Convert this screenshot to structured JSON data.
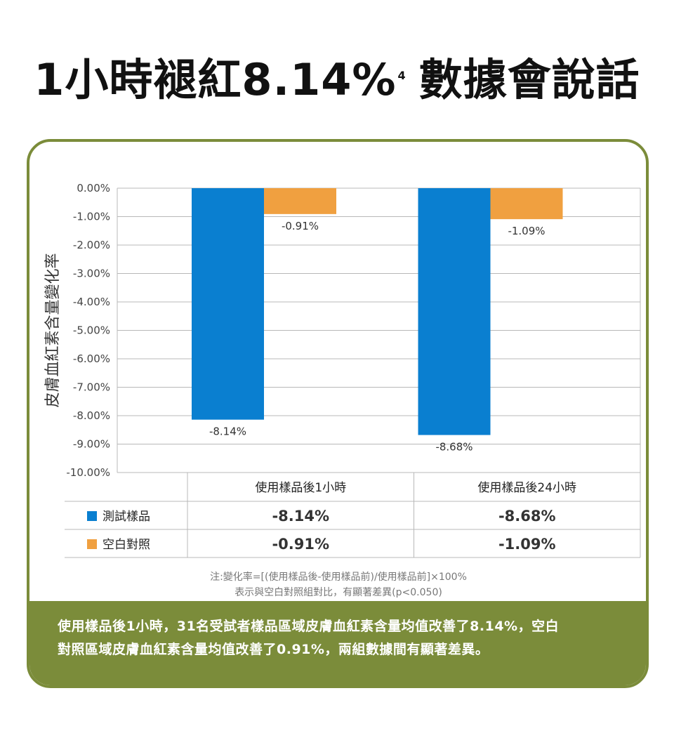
{
  "title": {
    "main": "1小時褪紅8.14%",
    "superscript": "4",
    "tail": "數據會說話"
  },
  "chart_data": {
    "type": "bar",
    "ylabel": "皮膚血紅素含量變化率",
    "ylim": [
      -10,
      0
    ],
    "y_tick_step": 1,
    "y_tick_labels": [
      "0.00%",
      "-1.00%",
      "-2.00%",
      "-3.00%",
      "-4.00%",
      "-5.00%",
      "-6.00%",
      "-7.00%",
      "-8.00%",
      "-9.00%",
      "-10.00%"
    ],
    "grid": true,
    "categories": [
      "使用樣品後1小時",
      "使用樣品後24小時"
    ],
    "series": [
      {
        "name": "測試樣品",
        "color": "#0a7fd0",
        "values": [
          -8.14,
          -8.68
        ],
        "labels": [
          "-8.14%",
          "-8.68%"
        ]
      },
      {
        "name": "空白對照",
        "color": "#f0a040",
        "values": [
          -0.91,
          -1.09
        ],
        "labels": [
          "-0.91%",
          "-1.09%"
        ]
      }
    ]
  },
  "notes": {
    "line1": "注:變化率=[(使用樣品後-使用樣品前)/使用樣品前]×100%",
    "line2": "表示與空白對照組對比，有顯著差異(p<0.050)"
  },
  "footer": {
    "line1": "使用樣品後1小時，31名受試者樣品區域皮膚血紅素含量均值改善了8.14%，空白",
    "line2": "對照區域皮膚血紅素含量均值改善了0.91%，兩組數據間有顯著差異。"
  },
  "colors": {
    "accent": "#7b8c3a"
  }
}
